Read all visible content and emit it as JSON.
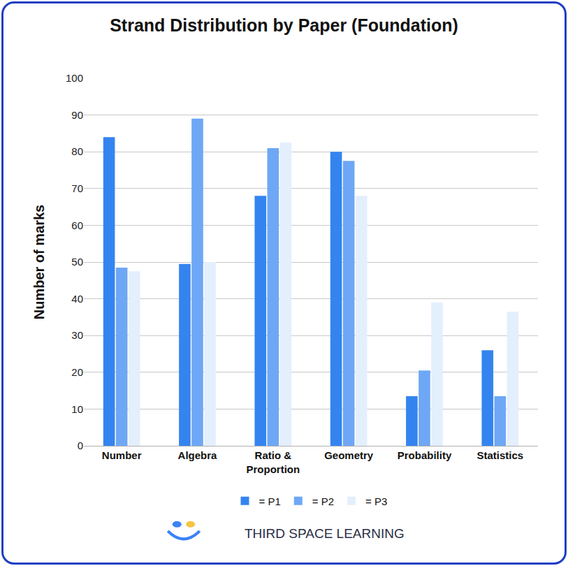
{
  "chart_data": {
    "type": "bar",
    "title": "Strand Distribution by Paper (Foundation)",
    "y_label": "Number of marks",
    "categories": [
      "Number",
      "Algebra",
      "Ratio & Proportion",
      "Geometry",
      "Probability",
      "Statistics"
    ],
    "series": [
      {
        "name": "= P1",
        "color": "#3484f0",
        "values": [
          84,
          49.5,
          68,
          80,
          13.5,
          26
        ]
      },
      {
        "name": "= P2",
        "color": "#6ea7f5",
        "values": [
          48.5,
          89,
          81,
          77.5,
          20.5,
          13.5
        ]
      },
      {
        "name": "= P3",
        "color": "#e3effd",
        "values": [
          47.5,
          50,
          82.5,
          68,
          39,
          36.5
        ]
      }
    ],
    "ylim": [
      0,
      100
    ],
    "yticks": [
      0,
      10,
      20,
      30,
      40,
      50,
      60,
      70,
      80,
      90,
      100
    ],
    "grid": true,
    "legend": "bottom",
    "annotations": [
      "THIRD SPACE LEARNING"
    ]
  }
}
